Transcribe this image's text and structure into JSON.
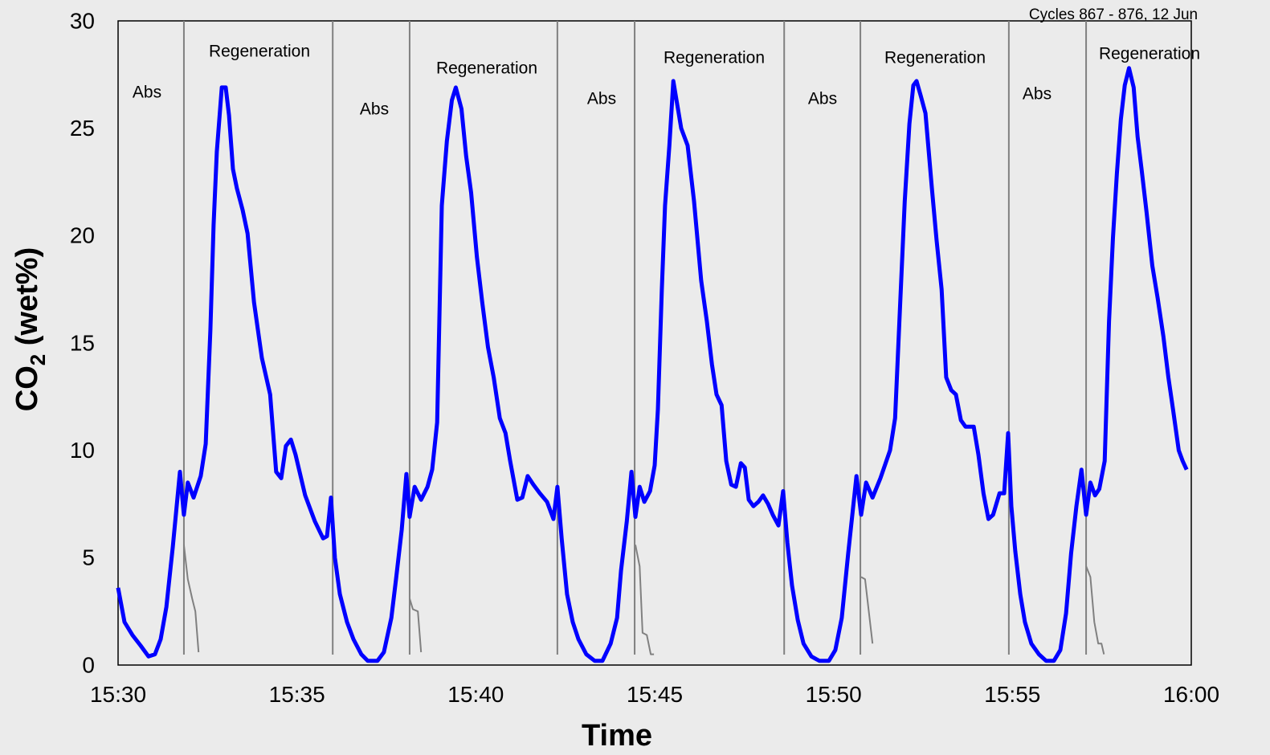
{
  "chart_data": {
    "type": "line",
    "subtitle": "Cycles 867 - 876, 12 Jun",
    "x_label": "Time",
    "y_label": {
      "main": "CO",
      "sub": "2",
      "rest": " (wet%)"
    },
    "xlim": [
      0,
      30
    ],
    "xticks": [
      {
        "value": 0,
        "label": "15:30"
      },
      {
        "value": 5,
        "label": "15:35"
      },
      {
        "value": 10,
        "label": "15:40"
      },
      {
        "value": 15,
        "label": "15:45"
      },
      {
        "value": 20,
        "label": "15:50"
      },
      {
        "value": 25,
        "label": "15:55"
      },
      {
        "value": 30,
        "label": "16:00"
      }
    ],
    "ylim": [
      0,
      30
    ],
    "yticks": [
      0,
      5,
      10,
      15,
      20,
      25,
      30
    ],
    "grid": false,
    "phase_lines": [
      1.84,
      6.0,
      8.15,
      12.28,
      14.44,
      18.62,
      20.75,
      24.9,
      27.06
    ],
    "phase_line_color": "#808080",
    "annotations": [
      "Abs",
      "Regeneration",
      "Abs",
      "Regeneration",
      "Abs",
      "Regeneration",
      "Abs",
      "Regeneration",
      "Abs",
      "Regeneration"
    ],
    "series": [
      {
        "color": "#0000ff",
        "x": [
          0,
          0.18,
          0.4,
          0.63,
          0.85,
          1.03,
          1.19,
          1.35,
          1.53,
          1.73,
          1.84,
          1.95,
          2.11,
          2.31,
          2.45,
          2.58,
          2.67,
          2.76,
          2.9,
          3.01,
          3.1,
          3.21,
          3.32,
          3.48,
          3.62,
          3.8,
          4.02,
          4.25,
          4.42,
          4.56,
          4.69,
          4.83,
          4.96,
          5.23,
          5.5,
          5.73,
          5.84,
          5.95,
          6.06,
          6.2,
          6.4,
          6.58,
          6.8,
          6.98,
          7.25,
          7.43,
          7.64,
          7.77,
          7.93,
          8.06,
          8.15,
          8.29,
          8.47,
          8.65,
          8.78,
          8.92,
          9.05,
          9.19,
          9.33,
          9.44,
          9.6,
          9.73,
          9.87,
          10.03,
          10.18,
          10.34,
          10.5,
          10.67,
          10.83,
          10.96,
          11.16,
          11.3,
          11.45,
          11.61,
          11.79,
          11.99,
          12.17,
          12.28,
          12.4,
          12.55,
          12.71,
          12.87,
          13.09,
          13.32,
          13.54,
          13.77,
          13.95,
          14.06,
          14.22,
          14.35,
          14.46,
          14.58,
          14.71,
          14.87,
          15.0,
          15.09,
          15.2,
          15.29,
          15.41,
          15.52,
          15.63,
          15.74,
          15.92,
          16.1,
          16.3,
          16.46,
          16.6,
          16.73,
          16.87,
          17.0,
          17.14,
          17.27,
          17.41,
          17.52,
          17.63,
          17.76,
          17.9,
          18.03,
          18.17,
          18.3,
          18.46,
          18.59,
          18.71,
          18.84,
          19.0,
          19.16,
          19.38,
          19.6,
          19.87,
          20.05,
          20.23,
          20.41,
          20.64,
          20.77,
          20.91,
          21.09,
          21.31,
          21.58,
          21.72,
          21.85,
          21.99,
          22.12,
          22.23,
          22.32,
          22.44,
          22.57,
          22.75,
          22.88,
          23.02,
          23.15,
          23.29,
          23.42,
          23.56,
          23.69,
          23.92,
          24.05,
          24.19,
          24.33,
          24.46,
          24.64,
          24.77,
          24.88,
          24.97,
          25.08,
          25.22,
          25.35,
          25.53,
          25.74,
          25.94,
          26.16,
          26.34,
          26.5,
          26.64,
          26.79,
          26.93,
          27.06,
          27.18,
          27.31,
          27.43,
          27.58,
          27.7,
          27.81,
          27.92,
          28.03,
          28.14,
          28.26,
          28.39,
          28.5,
          28.61,
          28.75,
          28.91,
          29.06,
          29.22,
          29.36,
          29.49,
          29.65,
          29.76,
          29.87
        ],
        "values": [
          3.6,
          2.0,
          1.4,
          0.9,
          0.4,
          0.5,
          1.2,
          2.7,
          5.5,
          9.0,
          7.0,
          8.5,
          7.8,
          8.8,
          10.3,
          15.6,
          20.5,
          23.9,
          26.9,
          26.9,
          25.6,
          23.1,
          22.2,
          21.2,
          20.1,
          16.9,
          14.3,
          12.6,
          9.0,
          8.7,
          10.2,
          10.5,
          9.8,
          7.9,
          6.7,
          5.9,
          6.0,
          7.8,
          5.0,
          3.3,
          2.0,
          1.2,
          0.5,
          0.2,
          0.2,
          0.6,
          2.2,
          4.0,
          6.3,
          8.9,
          6.9,
          8.3,
          7.7,
          8.3,
          9.1,
          11.3,
          21.4,
          24.4,
          26.3,
          26.9,
          25.9,
          23.7,
          22.0,
          19.0,
          16.9,
          14.8,
          13.4,
          11.5,
          10.8,
          9.5,
          7.7,
          7.8,
          8.8,
          8.4,
          8.0,
          7.6,
          6.8,
          8.3,
          5.9,
          3.3,
          2.0,
          1.2,
          0.5,
          0.2,
          0.2,
          1.0,
          2.2,
          4.4,
          6.7,
          9.0,
          6.9,
          8.3,
          7.6,
          8.1,
          9.3,
          11.9,
          17.5,
          21.4,
          24.2,
          27.2,
          26.1,
          25.0,
          24.2,
          21.6,
          17.9,
          16.0,
          14.0,
          12.6,
          12.1,
          9.5,
          8.4,
          8.3,
          9.4,
          9.2,
          7.7,
          7.4,
          7.6,
          7.9,
          7.5,
          7.0,
          6.5,
          8.1,
          5.7,
          3.7,
          2.1,
          1.0,
          0.4,
          0.2,
          0.2,
          0.7,
          2.2,
          5.2,
          8.8,
          7.0,
          8.5,
          7.8,
          8.7,
          10.0,
          11.5,
          16.4,
          21.6,
          25.2,
          27.0,
          27.2,
          26.5,
          25.7,
          22.2,
          19.8,
          17.5,
          13.4,
          12.8,
          12.6,
          11.4,
          11.1,
          11.1,
          9.8,
          8.0,
          6.8,
          7.0,
          8.0,
          8.0,
          10.8,
          7.4,
          5.3,
          3.3,
          2.0,
          1.0,
          0.5,
          0.2,
          0.2,
          0.7,
          2.4,
          5.2,
          7.4,
          9.1,
          7.0,
          8.5,
          7.9,
          8.2,
          9.5,
          16.0,
          19.9,
          22.9,
          25.4,
          27.0,
          27.8,
          26.9,
          24.6,
          23.1,
          21.1,
          18.6,
          17.1,
          15.3,
          13.4,
          11.9,
          10.0,
          9.5,
          9.1
        ]
      },
      {
        "color": "#808080",
        "x": [
          1.84,
          1.95,
          2.07,
          2.16,
          2.25,
          null,
          8.15,
          8.24,
          8.38,
          8.47,
          null,
          14.46,
          14.58,
          14.66,
          14.78,
          14.89,
          14.98,
          null,
          20.77,
          20.88,
          21.09,
          null,
          27.06,
          27.18,
          27.29,
          27.4,
          27.49,
          27.56
        ],
        "values": [
          5.6,
          4.0,
          3.1,
          2.5,
          0.6,
          null,
          3.1,
          2.6,
          2.5,
          0.6,
          null,
          5.6,
          4.6,
          1.5,
          1.4,
          0.5,
          0.5,
          null,
          4.1,
          4.0,
          1.0,
          null,
          4.6,
          4.1,
          2.0,
          1.0,
          1.0,
          0.5
        ]
      }
    ]
  }
}
